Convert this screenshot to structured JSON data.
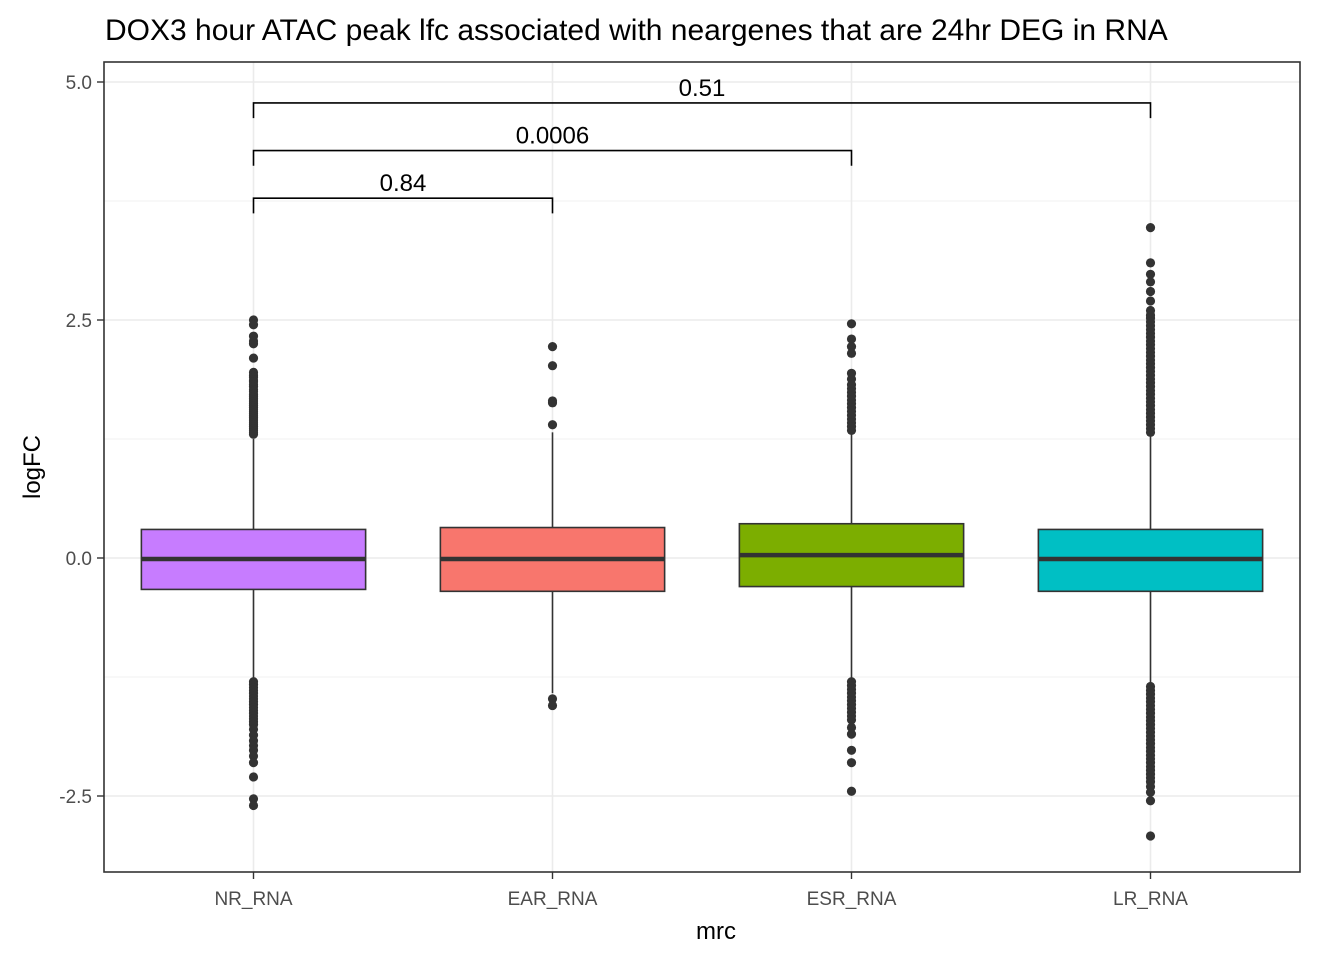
{
  "chart_data": {
    "type": "boxplot",
    "title": "DOX3 hour ATAC peak lfc associated with neargenes that are 24hr DEG in RNA",
    "xlabel": "mrc",
    "ylabel": "logFC",
    "ylim": [
      -3.3,
      5.0
    ],
    "yticks": [
      -2.5,
      0.0,
      2.5,
      5.0
    ],
    "ytick_labels": [
      "-2.5",
      "0.0",
      "2.5",
      "5.0"
    ],
    "grid": true,
    "legend": "none",
    "categories": [
      "NR_RNA",
      "EAR_RNA",
      "ESR_RNA",
      "LR_RNA"
    ],
    "boxes": [
      {
        "category": "NR_RNA",
        "color": "#C77CFF",
        "q1": -0.33,
        "median": -0.01,
        "q3": 0.3,
        "whisker_low": -1.27,
        "whisker_high": 1.25,
        "outliers": [
          2.5,
          2.45,
          2.33,
          2.28,
          2.25,
          2.1,
          1.95,
          1.92,
          1.9,
          1.87,
          1.85,
          1.82,
          1.8,
          1.77,
          1.75,
          1.72,
          1.7,
          1.68,
          1.66,
          1.64,
          1.62,
          1.6,
          1.58,
          1.56,
          1.54,
          1.52,
          1.5,
          1.48,
          1.46,
          1.44,
          1.42,
          1.4,
          1.38,
          1.36,
          1.34,
          1.32,
          1.3,
          -1.3,
          -1.33,
          -1.36,
          -1.39,
          -1.42,
          -1.45,
          -1.48,
          -1.51,
          -1.54,
          -1.57,
          -1.6,
          -1.63,
          -1.66,
          -1.69,
          -1.72,
          -1.75,
          -1.8,
          -1.86,
          -1.92,
          -1.97,
          -2.02,
          -2.08,
          -2.15,
          -2.3,
          -2.53,
          -2.6
        ]
      },
      {
        "category": "EAR_RNA",
        "color": "#F8766D",
        "q1": -0.35,
        "median": -0.01,
        "q3": 0.32,
        "whisker_low": -1.42,
        "whisker_high": 1.32,
        "outliers": [
          2.22,
          2.02,
          1.65,
          1.63,
          1.4,
          -1.48,
          -1.55
        ]
      },
      {
        "category": "ESR_RNA",
        "color": "#7CAE00",
        "q1": -0.3,
        "median": 0.03,
        "q3": 0.36,
        "whisker_low": -1.27,
        "whisker_high": 1.3,
        "outliers": [
          2.46,
          2.3,
          2.22,
          2.15,
          1.94,
          1.88,
          1.82,
          1.78,
          1.74,
          1.7,
          1.66,
          1.62,
          1.58,
          1.54,
          1.5,
          1.46,
          1.42,
          1.38,
          1.34,
          -1.3,
          -1.34,
          -1.38,
          -1.42,
          -1.46,
          -1.5,
          -1.54,
          -1.58,
          -1.62,
          -1.66,
          -1.7,
          -1.78,
          -1.85,
          -2.02,
          -2.15,
          -2.45
        ]
      },
      {
        "category": "LR_RNA",
        "color": "#00BFC4",
        "q1": -0.35,
        "median": -0.01,
        "q3": 0.3,
        "whisker_low": -1.32,
        "whisker_high": 1.28,
        "outliers": [
          3.47,
          3.1,
          2.98,
          2.9,
          2.8,
          2.7,
          2.6,
          2.55,
          2.52,
          2.48,
          2.44,
          2.4,
          2.36,
          2.32,
          2.28,
          2.24,
          2.2,
          2.16,
          2.12,
          2.08,
          2.04,
          2.0,
          1.96,
          1.92,
          1.88,
          1.84,
          1.8,
          1.76,
          1.72,
          1.68,
          1.64,
          1.6,
          1.56,
          1.52,
          1.48,
          1.44,
          1.4,
          1.36,
          1.32,
          -1.35,
          -1.39,
          -1.43,
          -1.47,
          -1.51,
          -1.55,
          -1.59,
          -1.63,
          -1.67,
          -1.71,
          -1.75,
          -1.79,
          -1.83,
          -1.87,
          -1.91,
          -1.95,
          -1.99,
          -2.03,
          -2.07,
          -2.11,
          -2.15,
          -2.19,
          -2.23,
          -2.27,
          -2.31,
          -2.35,
          -2.4,
          -2.46,
          -2.55,
          -2.92
        ]
      }
    ],
    "comparisons": [
      {
        "from": "NR_RNA",
        "to": "EAR_RNA",
        "label": "0.84",
        "y": 3.78,
        "tip": 3.62
      },
      {
        "from": "NR_RNA",
        "to": "ESR_RNA",
        "label": "0.0006",
        "y": 4.28,
        "tip": 4.12
      },
      {
        "from": "NR_RNA",
        "to": "LR_RNA",
        "label": "0.51",
        "y": 4.78,
        "tip": 4.62
      }
    ]
  }
}
